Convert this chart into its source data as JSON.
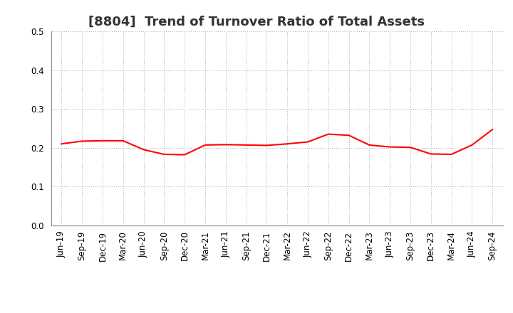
{
  "title": "[8804]  Trend of Turnover Ratio of Total Assets",
  "labels": [
    "Jun-19",
    "Sep-19",
    "Dec-19",
    "Mar-20",
    "Jun-20",
    "Sep-20",
    "Dec-20",
    "Mar-21",
    "Jun-21",
    "Sep-21",
    "Dec-21",
    "Mar-22",
    "Jun-22",
    "Sep-22",
    "Dec-22",
    "Mar-23",
    "Jun-23",
    "Sep-23",
    "Dec-23",
    "Mar-24",
    "Jun-24",
    "Sep-24"
  ],
  "values": [
    0.21,
    0.217,
    0.218,
    0.218,
    0.195,
    0.183,
    0.182,
    0.207,
    0.208,
    0.207,
    0.206,
    0.21,
    0.215,
    0.235,
    0.232,
    0.207,
    0.202,
    0.201,
    0.184,
    0.183,
    0.207,
    0.247
  ],
  "line_color": "#FF0000",
  "line_width": 1.5,
  "ylim": [
    0.0,
    0.5
  ],
  "yticks": [
    0.0,
    0.1,
    0.2,
    0.3,
    0.4,
    0.5
  ],
  "grid_color": "#aaaaaa",
  "background_color": "#ffffff",
  "title_fontsize": 13,
  "tick_fontsize": 8.5
}
